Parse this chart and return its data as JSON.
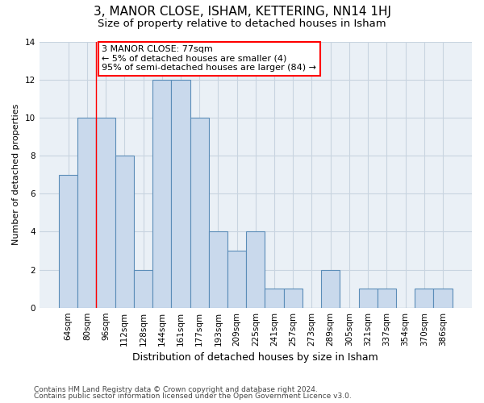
{
  "title": "3, MANOR CLOSE, ISHAM, KETTERING, NN14 1HJ",
  "subtitle": "Size of property relative to detached houses in Isham",
  "xlabel": "Distribution of detached houses by size in Isham",
  "ylabel": "Number of detached properties",
  "footer1": "Contains HM Land Registry data © Crown copyright and database right 2024.",
  "footer2": "Contains public sector information licensed under the Open Government Licence v3.0.",
  "categories": [
    "64sqm",
    "80sqm",
    "96sqm",
    "112sqm",
    "128sqm",
    "144sqm",
    "161sqm",
    "177sqm",
    "193sqm",
    "209sqm",
    "225sqm",
    "241sqm",
    "257sqm",
    "273sqm",
    "289sqm",
    "305sqm",
    "321sqm",
    "337sqm",
    "354sqm",
    "370sqm",
    "386sqm"
  ],
  "values": [
    7,
    10,
    10,
    8,
    2,
    12,
    12,
    10,
    4,
    3,
    4,
    1,
    1,
    0,
    2,
    0,
    1,
    1,
    0,
    1,
    1
  ],
  "bar_color": "#c9d9ec",
  "bar_edge_color": "#5b8db8",
  "annotation_line1": "3 MANOR CLOSE: 77sqm",
  "annotation_line2": "← 5% of detached houses are smaller (4)",
  "annotation_line3": "95% of semi-detached houses are larger (84) →",
  "annotation_box_color": "white",
  "annotation_box_edge_color": "red",
  "vline_color": "red",
  "vline_x": 1.5,
  "ylim": [
    0,
    14
  ],
  "yticks": [
    0,
    2,
    4,
    6,
    8,
    10,
    12,
    14
  ],
  "grid_color": "#c8d4e0",
  "bg_color": "#eaf0f6",
  "title_fontsize": 11,
  "subtitle_fontsize": 9.5,
  "xlabel_fontsize": 9,
  "ylabel_fontsize": 8,
  "tick_fontsize": 7.5,
  "annotation_fontsize": 8,
  "footer_fontsize": 6.5
}
